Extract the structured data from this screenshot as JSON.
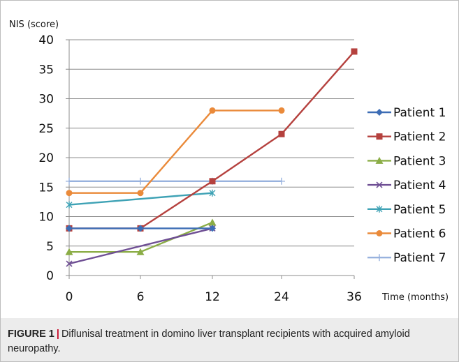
{
  "chart_data": {
    "type": "line",
    "ylabel": "NIS (score)",
    "xlabel": "Time  (months)",
    "x_categories": [
      "0",
      "6",
      "12",
      "24",
      "36"
    ],
    "ylim": [
      0,
      40
    ],
    "yticks": [
      0,
      5,
      10,
      15,
      20,
      25,
      30,
      35,
      40
    ],
    "grid": true,
    "legend_position": "right",
    "series": [
      {
        "name": "Patient 1",
        "color": "#3d6db5",
        "marker": "diamond",
        "values": [
          8,
          8,
          8,
          null,
          null
        ]
      },
      {
        "name": "Patient 2",
        "color": "#b5413e",
        "marker": "square",
        "values": [
          8,
          8,
          16,
          24,
          38
        ]
      },
      {
        "name": "Patient 3",
        "color": "#8bad46",
        "marker": "triangle",
        "values": [
          4,
          4,
          9,
          null,
          null
        ]
      },
      {
        "name": "Patient 4",
        "color": "#6f4f94",
        "marker": "x",
        "values": [
          2,
          null,
          8,
          null,
          null
        ]
      },
      {
        "name": "Patient 5",
        "color": "#3ea2b5",
        "marker": "star",
        "values": [
          12,
          null,
          14,
          null,
          null
        ]
      },
      {
        "name": "Patient 6",
        "color": "#ea8a3a",
        "marker": "circle",
        "values": [
          14,
          14,
          28,
          28,
          null
        ]
      },
      {
        "name": "Patient 7",
        "color": "#98b2de",
        "marker": "plus",
        "values": [
          16,
          16,
          16,
          16,
          null
        ]
      }
    ]
  },
  "caption": {
    "label": "FIGURE 1",
    "separator": "|",
    "text": "Diflunisal treatment in domino liver transplant recipients with acquired amyloid neuropathy."
  }
}
